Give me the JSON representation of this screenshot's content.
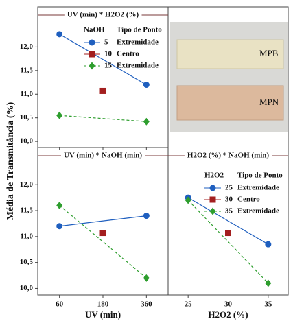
{
  "chart_data": [
    {
      "type": "line",
      "title": "UV (min) * H2O2 (%)",
      "ylabel": "Média de Transmitância (%)",
      "categories": [
        null,
        null,
        null
      ],
      "legend": {
        "title": "NaOH",
        "subtitle": "Tipo de Ponto"
      },
      "series": [
        {
          "name": "5",
          "point_type": "Extremidade",
          "color": "#1f5fbf",
          "marker": "circle",
          "dashed": false,
          "values": [
            12.27,
            null,
            11.2
          ]
        },
        {
          "name": "10",
          "point_type": "Centro",
          "color": "#a31f1f",
          "marker": "square",
          "dashed": false,
          "values": [
            null,
            11.07,
            null
          ]
        },
        {
          "name": "15",
          "point_type": "Extremidade",
          "color": "#2e9e2e",
          "marker": "diamond",
          "dashed": true,
          "values": [
            10.55,
            null,
            10.42
          ]
        }
      ],
      "ylim": [
        9.9,
        12.5
      ],
      "yticks": [
        {
          "value": 10,
          "label": "10,0"
        },
        {
          "value": 10.5,
          "label": "10,5"
        },
        {
          "value": 11,
          "label": "11,0"
        },
        {
          "value": 11.5,
          "label": "11,5"
        },
        {
          "value": 12,
          "label": "12,0"
        }
      ]
    },
    {
      "type": "line",
      "title": "UV (min) * NaOH (min)",
      "xlabel": "UV (min)",
      "categories": [
        "60",
        "180",
        "360"
      ],
      "series": [
        {
          "name": "5",
          "color": "#1f5fbf",
          "marker": "circle",
          "dashed": false,
          "values": [
            11.2,
            null,
            11.4
          ]
        },
        {
          "name": "10",
          "color": "#a31f1f",
          "marker": "square",
          "dashed": false,
          "values": [
            null,
            11.07,
            null
          ]
        },
        {
          "name": "15",
          "color": "#2e9e2e",
          "marker": "diamond",
          "dashed": true,
          "values": [
            11.6,
            null,
            10.2
          ]
        }
      ],
      "ylim": [
        9.9,
        12.4
      ],
      "yticks": [
        {
          "value": 10,
          "label": "10,0"
        },
        {
          "value": 10.5,
          "label": "10,5"
        },
        {
          "value": 11,
          "label": "11,0"
        },
        {
          "value": 11.5,
          "label": "11,5"
        },
        {
          "value": 12,
          "label": "12,0"
        }
      ]
    },
    {
      "type": "line",
      "title": "H2O2 (%) * NaOH (min)",
      "xlabel": "H2O2 (%)",
      "categories": [
        "25",
        "30",
        "35"
      ],
      "legend": {
        "title": "H2O2",
        "subtitle": "Tipo de Ponto"
      },
      "series": [
        {
          "name": "25",
          "point_type": "Extremidade",
          "color": "#1f5fbf",
          "marker": "circle",
          "dashed": false,
          "values": [
            11.75,
            null,
            10.85
          ]
        },
        {
          "name": "30",
          "point_type": "Centro",
          "color": "#a31f1f",
          "marker": "square",
          "dashed": false,
          "values": [
            null,
            11.07,
            null
          ]
        },
        {
          "name": "35",
          "point_type": "Extremidade",
          "color": "#2e9e2e",
          "marker": "diamond",
          "dashed": true,
          "values": [
            11.7,
            null,
            10.1
          ]
        }
      ],
      "ylim": [
        9.9,
        12.4
      ]
    }
  ],
  "photo": {
    "labels": [
      "MPB",
      "MPN"
    ]
  }
}
